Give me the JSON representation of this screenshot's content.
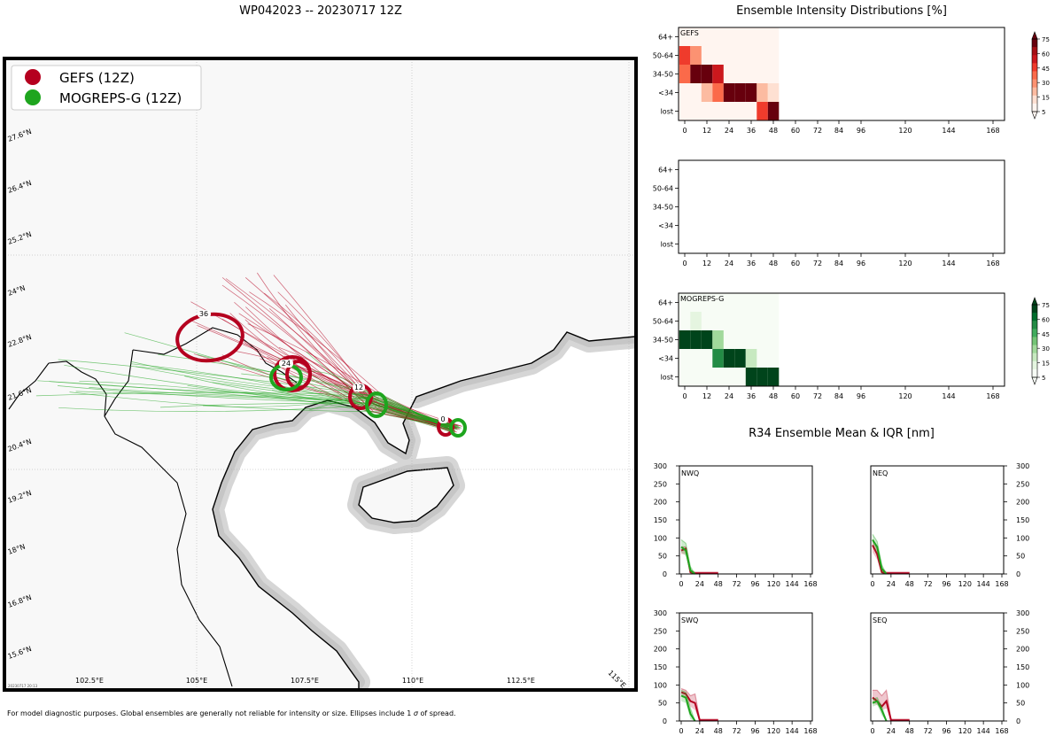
{
  "header": {
    "map_title": "WP042023 -- 20230717 12Z",
    "intensity_title": "Ensemble Intensity Distributions [%]",
    "r34_title": "R34 Ensemble Mean & IQR [nm]"
  },
  "footer": {
    "note_prefix": "For model diagnostic purposes. Global ensembles are generally not reliable for intensity or size. Ellipses include 1",
    "note_sigma": "σ",
    "note_suffix": "of spread."
  },
  "colors": {
    "gefs": "#b5001f",
    "mogreps": "#1ea51e",
    "land": "#f8f8f8",
    "coast_shade": "#c8c8c8"
  },
  "map": {
    "legend": [
      {
        "label": "GEFS (12Z)",
        "color": "#b5001f"
      },
      {
        "label": "MOGREPS-G (12Z)",
        "color": "#1ea51e"
      }
    ],
    "lat_labels": [
      "27.6°N",
      "26.4°N",
      "25.2°N",
      "24°N",
      "22.8°N",
      "21.6°N",
      "20.4°N",
      "19.2°N",
      "18°N",
      "16.8°N",
      "15.6°N"
    ],
    "lon_labels": [
      "102.5°E",
      "105°E",
      "107.5°E",
      "110°E",
      "112.5°E",
      "115°E"
    ],
    "stamp": "20230717 20:13",
    "forecast_hours": [
      "0",
      "12",
      "24",
      "36"
    ]
  },
  "intensity": {
    "rows": [
      "64+",
      "50-64",
      "34-50",
      "<34",
      "lost"
    ],
    "hours": [
      0,
      12,
      24,
      36,
      48,
      60,
      72,
      84,
      96,
      120,
      144,
      168
    ],
    "colorbar_ticks": [
      75,
      60,
      45,
      30,
      15,
      5
    ],
    "panels": [
      {
        "name": "GEFS",
        "scheme": "red",
        "cells": [
          {
            "hour": 0,
            "row": "50-64",
            "pct": 55
          },
          {
            "hour": 0,
            "row": "34-50",
            "pct": 40
          },
          {
            "hour": 6,
            "row": "50-64",
            "pct": 30
          },
          {
            "hour": 6,
            "row": "34-50",
            "pct": 80
          },
          {
            "hour": 12,
            "row": "34-50",
            "pct": 80
          },
          {
            "hour": 18,
            "row": "34-50",
            "pct": 65
          },
          {
            "hour": 12,
            "row": "<34",
            "pct": 25
          },
          {
            "hour": 18,
            "row": "<34",
            "pct": 40
          },
          {
            "hour": 24,
            "row": "<34",
            "pct": 80
          },
          {
            "hour": 30,
            "row": "<34",
            "pct": 80
          },
          {
            "hour": 36,
            "row": "<34",
            "pct": 80
          },
          {
            "hour": 42,
            "row": "<34",
            "pct": 20
          },
          {
            "hour": 42,
            "row": "lost",
            "pct": 55
          },
          {
            "hour": 48,
            "row": "<34",
            "pct": 15
          },
          {
            "hour": 48,
            "row": "lost",
            "pct": 85
          }
        ]
      },
      {
        "name": "",
        "scheme": "none",
        "cells": []
      },
      {
        "name": "MOGREPS-G",
        "scheme": "green",
        "cells": [
          {
            "hour": 6,
            "row": "50-64",
            "pct": 12
          },
          {
            "hour": 0,
            "row": "34-50",
            "pct": 85
          },
          {
            "hour": 6,
            "row": "34-50",
            "pct": 85
          },
          {
            "hour": 12,
            "row": "34-50",
            "pct": 85
          },
          {
            "hour": 18,
            "row": "34-50",
            "pct": 35
          },
          {
            "hour": 18,
            "row": "<34",
            "pct": 60
          },
          {
            "hour": 24,
            "row": "<34",
            "pct": 85
          },
          {
            "hour": 30,
            "row": "<34",
            "pct": 85
          },
          {
            "hour": 36,
            "row": "<34",
            "pct": 25
          },
          {
            "hour": 36,
            "row": "lost",
            "pct": 85
          },
          {
            "hour": 42,
            "row": "lost",
            "pct": 85
          },
          {
            "hour": 48,
            "row": "lost",
            "pct": 85
          }
        ]
      }
    ]
  },
  "chart_data": [
    {
      "type": "heatmap",
      "title": "GEFS",
      "x": [
        0,
        6,
        12,
        18,
        24,
        30,
        36,
        42,
        48
      ],
      "rows": [
        "64+",
        "50-64",
        "34-50",
        "<34",
        "lost"
      ],
      "units": "%"
    },
    {
      "type": "heatmap",
      "title": "MOGREPS-G",
      "x": [
        0,
        6,
        12,
        18,
        24,
        30,
        36,
        42,
        48
      ],
      "rows": [
        "64+",
        "50-64",
        "34-50",
        "<34",
        "lost"
      ],
      "units": "%"
    },
    {
      "type": "line",
      "title": "NWQ",
      "xlabel": "",
      "ylabel": "",
      "xlim": [
        0,
        168
      ],
      "ylim": [
        0,
        300
      ],
      "xticks": [
        0,
        24,
        48,
        72,
        96,
        120,
        144,
        168
      ],
      "yticks": [
        0,
        50,
        100,
        150,
        200,
        250,
        300
      ],
      "series": [
        {
          "name": "GEFS",
          "x": [
            0,
            6,
            12,
            18,
            24,
            30,
            36,
            42,
            48
          ],
          "values": [
            65,
            70,
            5,
            2,
            2,
            2,
            2,
            2,
            2
          ],
          "iqr_low": [
            55,
            55,
            0,
            0,
            0,
            0,
            0,
            0,
            0
          ],
          "iqr_high": [
            75,
            75,
            10,
            5,
            5,
            5,
            5,
            5,
            5
          ]
        },
        {
          "name": "MOGREPS-G",
          "x": [
            0,
            6,
            12,
            18
          ],
          "values": [
            75,
            65,
            10,
            0
          ],
          "iqr_low": [
            60,
            50,
            0,
            0
          ],
          "iqr_high": [
            95,
            85,
            20,
            0
          ]
        }
      ]
    },
    {
      "type": "line",
      "title": "NEQ",
      "xlim": [
        0,
        168
      ],
      "ylim": [
        0,
        300
      ],
      "xticks": [
        0,
        24,
        48,
        72,
        96,
        120,
        144,
        168
      ],
      "yticks": [
        0,
        50,
        100,
        150,
        200,
        250,
        300
      ],
      "series": [
        {
          "name": "GEFS",
          "x": [
            0,
            6,
            12,
            18,
            24,
            30,
            36,
            42,
            48
          ],
          "values": [
            80,
            55,
            5,
            2,
            2,
            2,
            2,
            2,
            2
          ],
          "iqr_low": [
            60,
            40,
            0,
            0,
            0,
            0,
            0,
            0,
            0
          ],
          "iqr_high": [
            95,
            70,
            15,
            5,
            5,
            5,
            5,
            5,
            5
          ]
        },
        {
          "name": "MOGREPS-G",
          "x": [
            0,
            6,
            12,
            18
          ],
          "values": [
            95,
            75,
            15,
            0
          ],
          "iqr_low": [
            80,
            55,
            0,
            0
          ],
          "iqr_high": [
            110,
            90,
            25,
            0
          ]
        }
      ]
    },
    {
      "type": "line",
      "title": "SWQ",
      "xlim": [
        0,
        168
      ],
      "ylim": [
        0,
        300
      ],
      "xticks": [
        0,
        24,
        48,
        72,
        96,
        120,
        144,
        168
      ],
      "yticks": [
        0,
        50,
        100,
        150,
        200,
        250,
        300
      ],
      "series": [
        {
          "name": "GEFS",
          "x": [
            0,
            6,
            12,
            18,
            24,
            30,
            36,
            42,
            48
          ],
          "values": [
            80,
            75,
            55,
            50,
            2,
            2,
            2,
            2,
            2
          ],
          "iqr_low": [
            70,
            60,
            40,
            30,
            0,
            0,
            0,
            0,
            0
          ],
          "iqr_high": [
            90,
            85,
            70,
            75,
            5,
            5,
            5,
            5,
            5
          ]
        },
        {
          "name": "MOGREPS-G",
          "x": [
            0,
            6,
            12,
            18
          ],
          "values": [
            70,
            65,
            20,
            0
          ],
          "iqr_low": [
            55,
            50,
            5,
            0
          ],
          "iqr_high": [
            85,
            80,
            35,
            0
          ]
        }
      ]
    },
    {
      "type": "line",
      "title": "SEQ",
      "xlim": [
        0,
        168
      ],
      "ylim": [
        0,
        300
      ],
      "xticks": [
        0,
        24,
        48,
        72,
        96,
        120,
        144,
        168
      ],
      "yticks": [
        0,
        50,
        100,
        150,
        200,
        250,
        300
      ],
      "series": [
        {
          "name": "GEFS",
          "x": [
            0,
            6,
            12,
            18,
            24,
            30,
            36,
            42,
            48
          ],
          "values": [
            65,
            55,
            40,
            55,
            2,
            2,
            2,
            2,
            2
          ],
          "iqr_low": [
            50,
            45,
            30,
            35,
            0,
            0,
            0,
            0,
            0
          ],
          "iqr_high": [
            85,
            85,
            70,
            85,
            5,
            5,
            5,
            5,
            5
          ]
        },
        {
          "name": "MOGREPS-G",
          "x": [
            0,
            6,
            12,
            18
          ],
          "values": [
            50,
            55,
            30,
            0
          ],
          "iqr_low": [
            40,
            45,
            15,
            0
          ],
          "iqr_high": [
            60,
            65,
            40,
            0
          ]
        }
      ]
    }
  ]
}
